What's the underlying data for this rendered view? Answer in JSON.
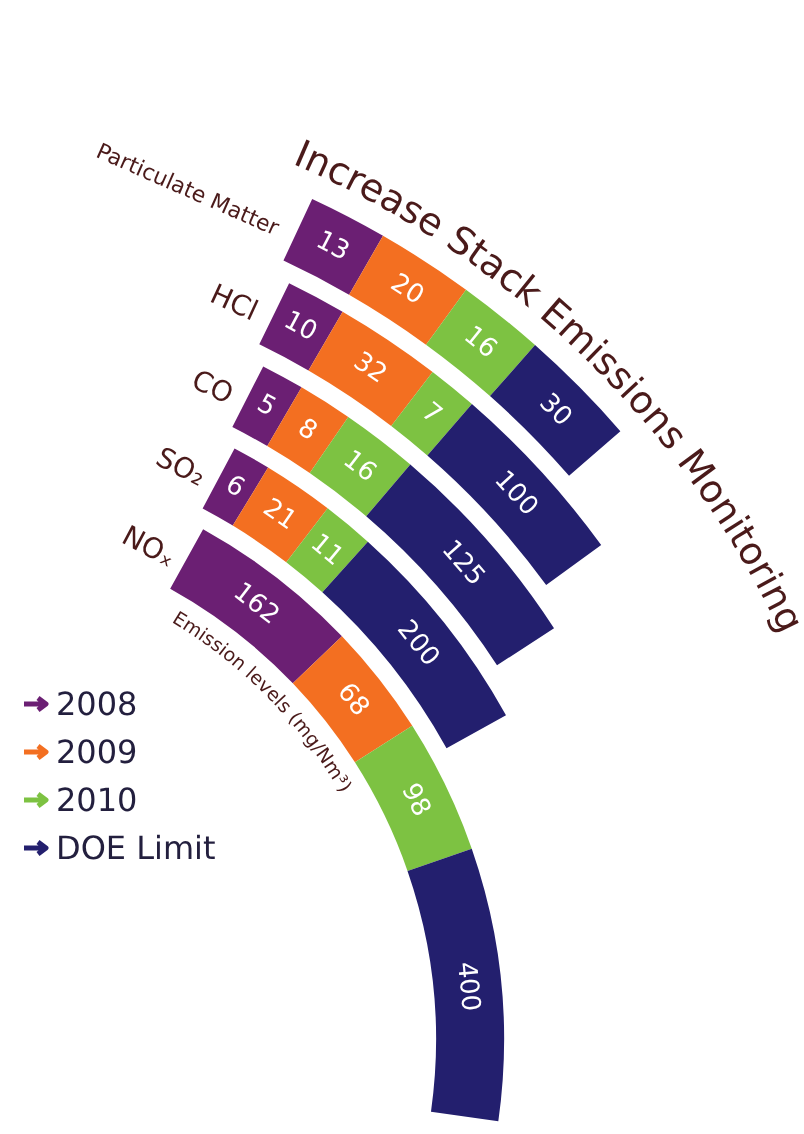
{
  "chart_data": {
    "type": "other",
    "title": "Increase Stack Emissions Monitoring",
    "xlabel": "Emission levels (mg/Nm³)",
    "categories": [
      "Particulate Matter",
      "HCl",
      "CO",
      "SO₂",
      "NOₓ"
    ],
    "series": [
      {
        "name": "2008",
        "color": "#6b1f73",
        "values": [
          13,
          10,
          5,
          6,
          162
        ]
      },
      {
        "name": "2009",
        "color": "#f36f21",
        "values": [
          20,
          32,
          8,
          21,
          68
        ]
      },
      {
        "name": "2010",
        "color": "#7dc242",
        "values": [
          16,
          7,
          16,
          11,
          98
        ]
      },
      {
        "name": "DOE Limit",
        "color": "#231f6e",
        "values": [
          30,
          100,
          125,
          200,
          400
        ]
      }
    ],
    "data_labels": true,
    "legend": "bottom left"
  }
}
